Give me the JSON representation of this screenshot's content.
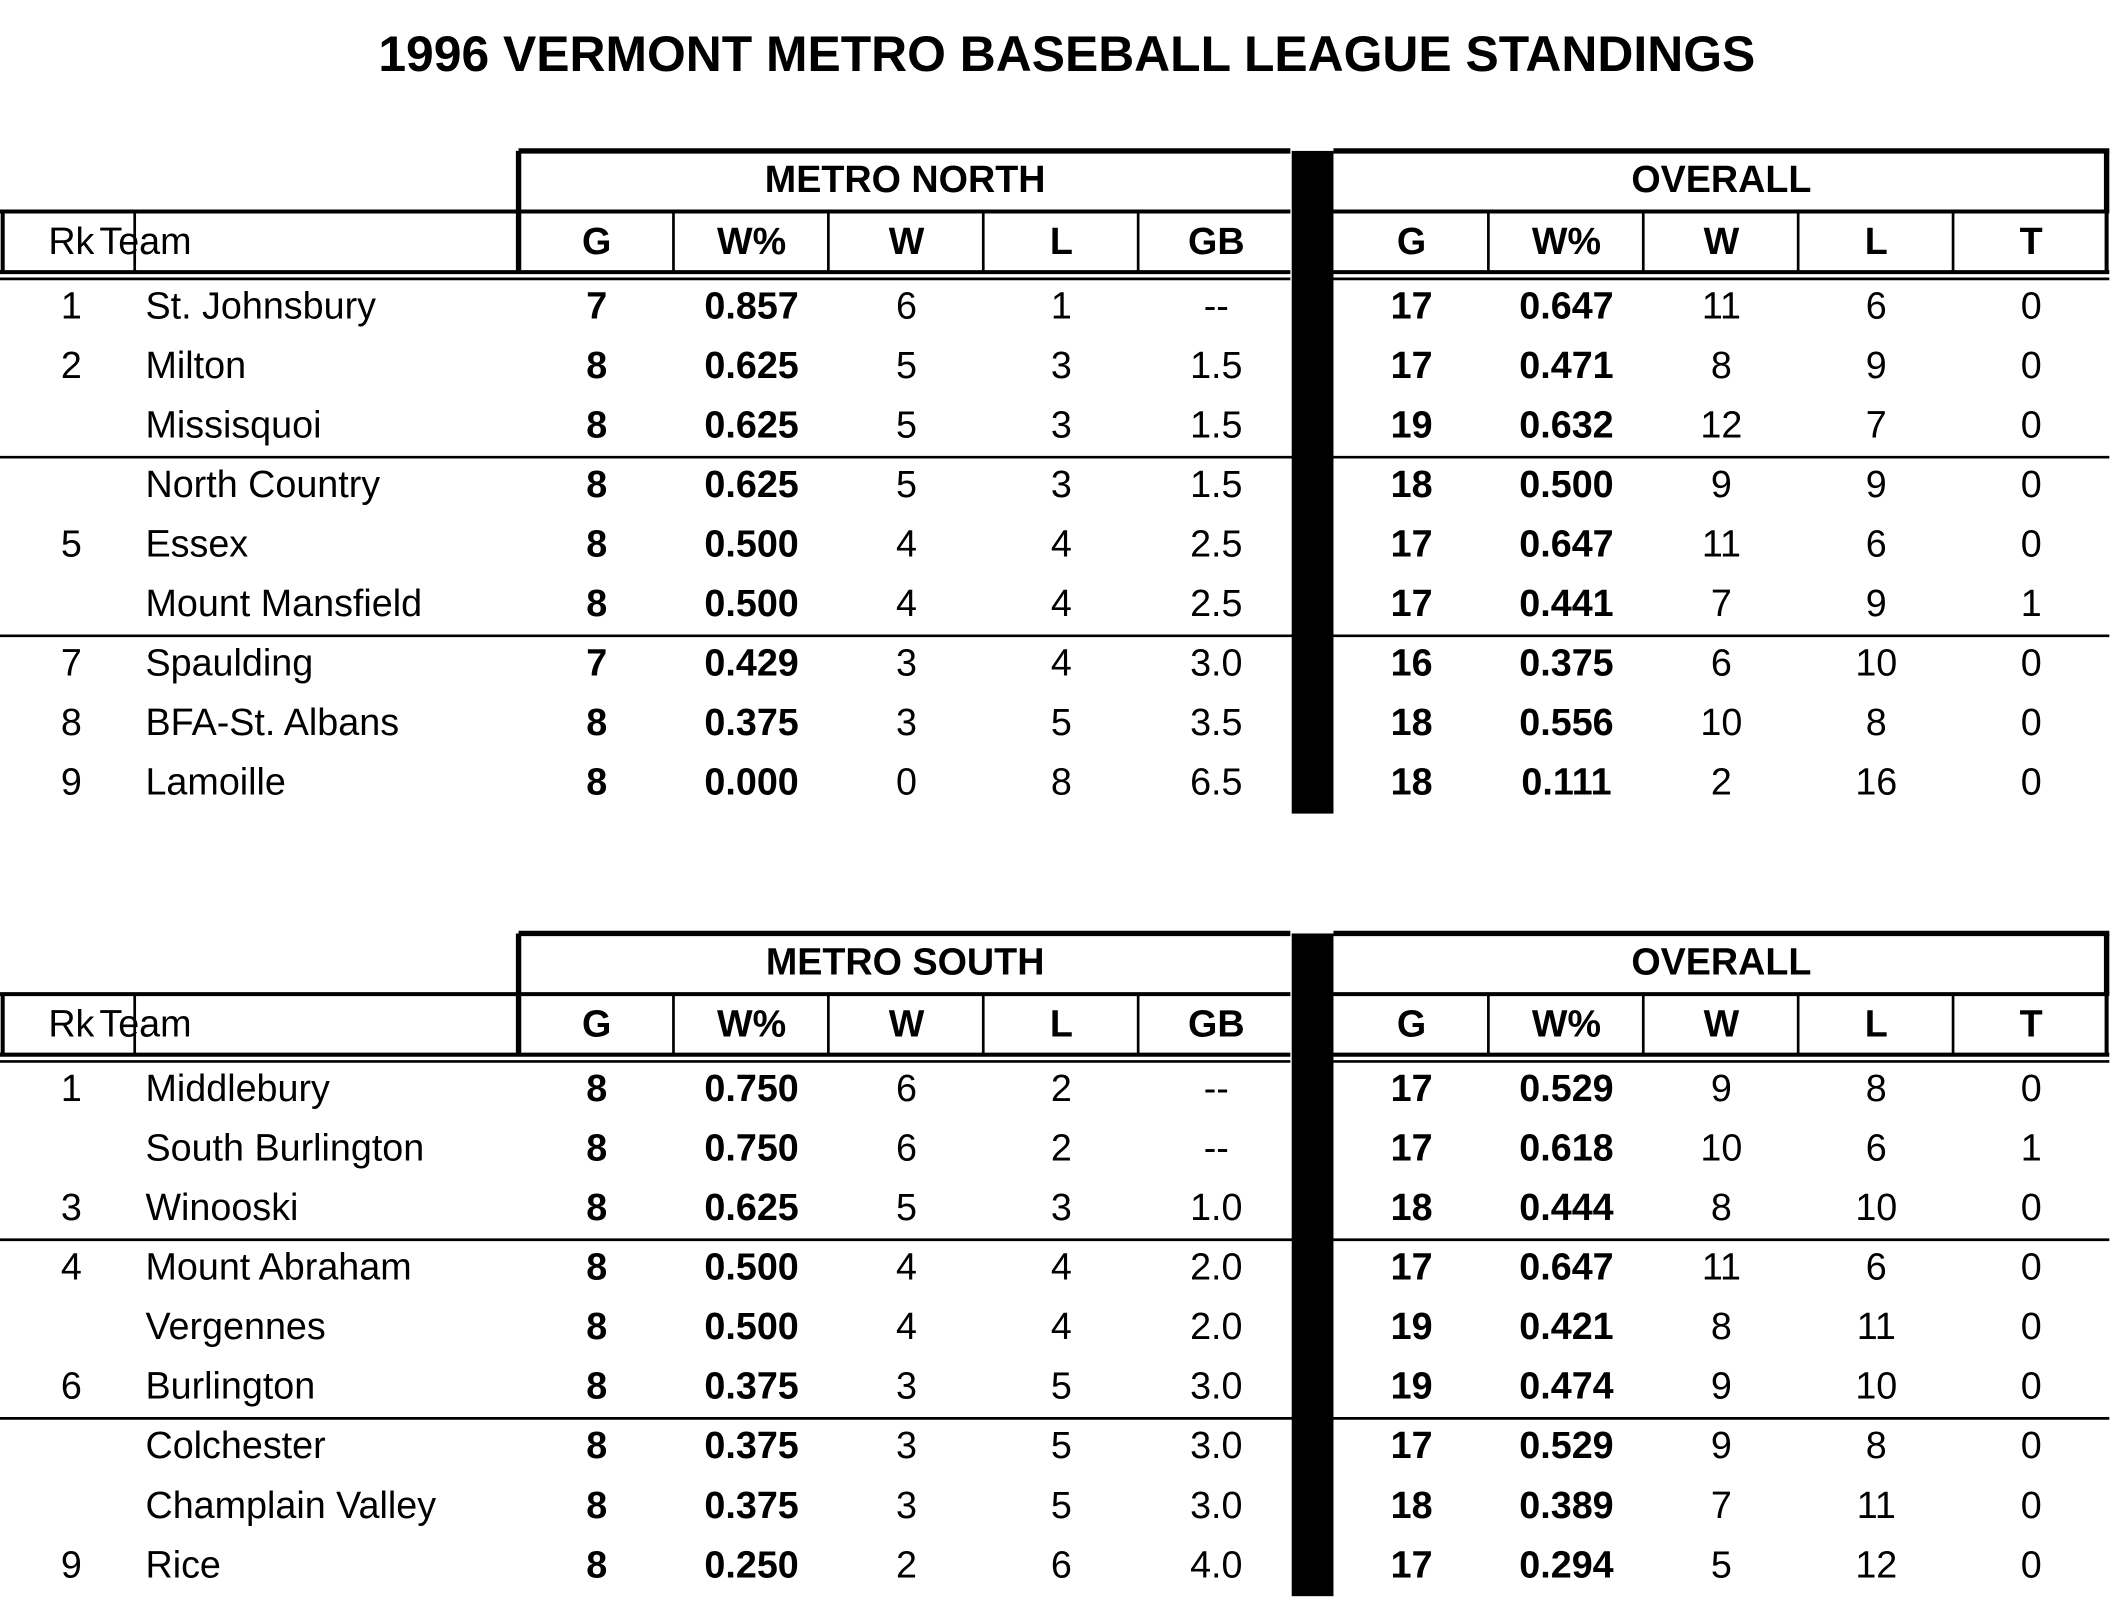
{
  "title": "1996 VERMONT METRO BASEBALL LEAGUE STANDINGS",
  "tables": [
    {
      "group_header": "METRO NORTH",
      "overall_header": "OVERALL",
      "columns": [
        "Rk",
        "Team",
        "G",
        "W%",
        "W",
        "L",
        "GB",
        "G",
        "W%",
        "W",
        "L",
        "T"
      ],
      "rows": [
        [
          "1",
          "St. Johnsbury",
          "7",
          "0.857",
          "6",
          "1",
          "--",
          "17",
          "0.647",
          "11",
          "6",
          "0"
        ],
        [
          "2",
          "Milton",
          "8",
          "0.625",
          "5",
          "3",
          "1.5",
          "17",
          "0.471",
          "8",
          "9",
          "0"
        ],
        [
          null,
          "Missisquoi",
          "8",
          "0.625",
          "5",
          "3",
          "1.5",
          "19",
          "0.632",
          "12",
          "7",
          "0"
        ],
        [
          null,
          "North Country",
          "8",
          "0.625",
          "5",
          "3",
          "1.5",
          "18",
          "0.500",
          "9",
          "9",
          "0"
        ],
        [
          "5",
          "Essex",
          "8",
          "0.500",
          "4",
          "4",
          "2.5",
          "17",
          "0.647",
          "11",
          "6",
          "0"
        ],
        [
          null,
          "Mount Mansfield",
          "8",
          "0.500",
          "4",
          "4",
          "2.5",
          "17",
          "0.441",
          "7",
          "9",
          "1"
        ],
        [
          "7",
          "Spaulding",
          "7",
          "0.429",
          "3",
          "4",
          "3.0",
          "16",
          "0.375",
          "6",
          "10",
          "0"
        ],
        [
          "8",
          "BFA-St. Albans",
          "8",
          "0.375",
          "3",
          "5",
          "3.5",
          "18",
          "0.556",
          "10",
          "8",
          "0"
        ],
        [
          "9",
          "Lamoille",
          "8",
          "0.000",
          "0",
          "8",
          "6.5",
          "18",
          "0.111",
          "2",
          "16",
          "0"
        ]
      ]
    },
    {
      "group_header": "METRO SOUTH",
      "overall_header": "OVERALL",
      "columns": [
        "Rk",
        "Team",
        "G",
        "W%",
        "W",
        "L",
        "GB",
        "G",
        "W%",
        "W",
        "L",
        "T"
      ],
      "rows": [
        [
          "1",
          "Middlebury",
          "8",
          "0.750",
          "6",
          "2",
          "--",
          "17",
          "0.529",
          "9",
          "8",
          "0"
        ],
        [
          null,
          "South Burlington",
          "8",
          "0.750",
          "6",
          "2",
          "--",
          "17",
          "0.618",
          "10",
          "6",
          "1"
        ],
        [
          "3",
          "Winooski",
          "8",
          "0.625",
          "5",
          "3",
          "1.0",
          "18",
          "0.444",
          "8",
          "10",
          "0"
        ],
        [
          "4",
          "Mount Abraham",
          "8",
          "0.500",
          "4",
          "4",
          "2.0",
          "17",
          "0.647",
          "11",
          "6",
          "0"
        ],
        [
          null,
          "Vergennes",
          "8",
          "0.500",
          "4",
          "4",
          "2.0",
          "19",
          "0.421",
          "8",
          "11",
          "0"
        ],
        [
          "6",
          "Burlington",
          "8",
          "0.375",
          "3",
          "5",
          "3.0",
          "19",
          "0.474",
          "9",
          "10",
          "0"
        ],
        [
          null,
          "Colchester",
          "8",
          "0.375",
          "3",
          "5",
          "3.0",
          "17",
          "0.529",
          "9",
          "8",
          "0"
        ],
        [
          null,
          "Champlain Valley",
          "8",
          "0.375",
          "3",
          "5",
          "3.0",
          "18",
          "0.389",
          "7",
          "11",
          "0"
        ],
        [
          "9",
          "Rice",
          "8",
          "0.250",
          "2",
          "6",
          "4.0",
          "17",
          "0.294",
          "5",
          "12",
          "0"
        ]
      ]
    }
  ]
}
